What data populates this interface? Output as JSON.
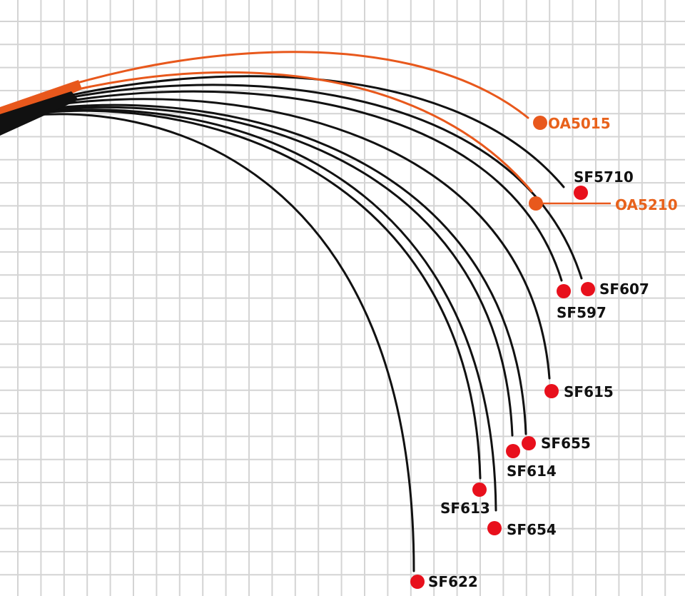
{
  "colors": {
    "grid": "#d4d4d4",
    "black_rod": "#111111",
    "orange_rod": "#e8581c",
    "orange_label": "#e8621c",
    "red_dot": "#e8101c",
    "black_label": "#111111"
  },
  "rods": [
    {
      "label": "OA5015",
      "series": "orange"
    },
    {
      "label": "OA5210",
      "series": "orange"
    },
    {
      "label": "SF5710",
      "series": "black"
    },
    {
      "label": "SF607",
      "series": "black"
    },
    {
      "label": "SF597",
      "series": "black"
    },
    {
      "label": "SF615",
      "series": "black"
    },
    {
      "label": "SF655",
      "series": "black"
    },
    {
      "label": "SF614",
      "series": "black"
    },
    {
      "label": "SF613",
      "series": "black"
    },
    {
      "label": "SF654",
      "series": "black"
    },
    {
      "label": "SF622",
      "series": "black"
    }
  ]
}
